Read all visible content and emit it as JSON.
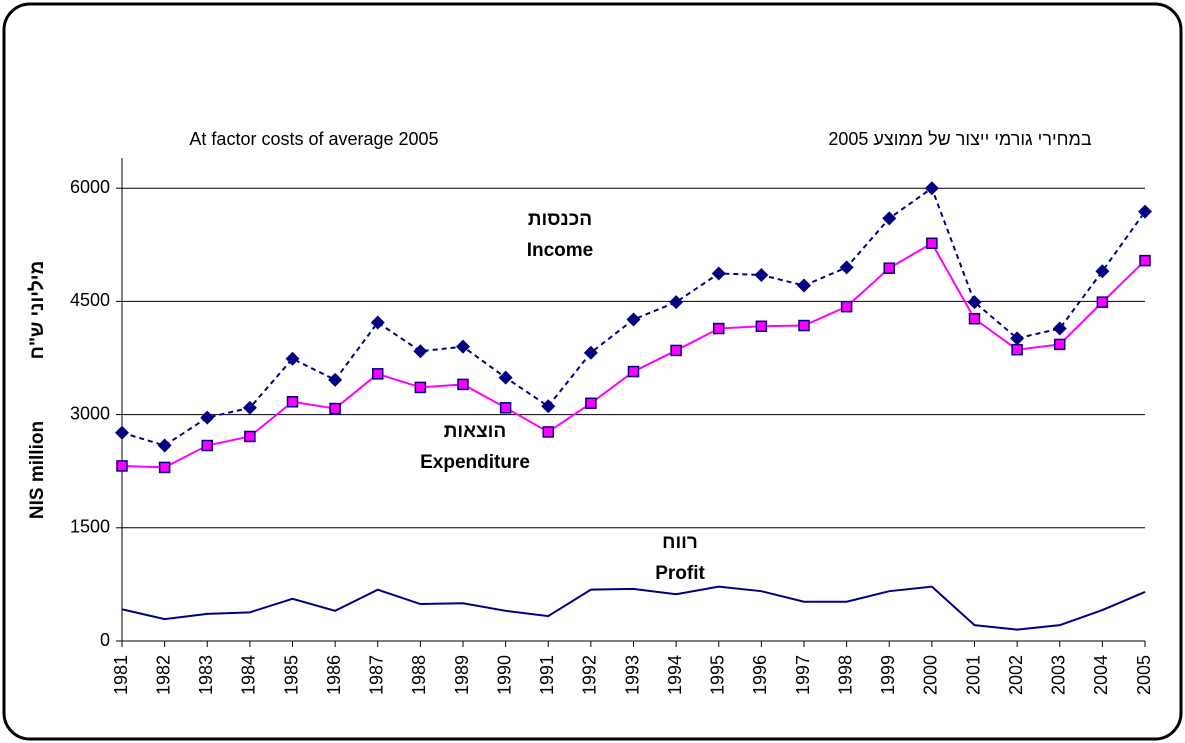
{
  "chart_data": {
    "type": "line",
    "subtitle_left": "At factor costs of average 2005",
    "subtitle_right": "במחירי גורמי ייצור של ממוצע 2005",
    "ylabel": "NIS million",
    "ylabel_he": "מיליוני ש\"ח",
    "categories": [
      "1981",
      "1982",
      "1983",
      "1984",
      "1985",
      "1986",
      "1987",
      "1988",
      "1989",
      "1990",
      "1991",
      "1992",
      "1993",
      "1994",
      "1995",
      "1996",
      "1997",
      "1998",
      "1999",
      "2000",
      "2001",
      "2002",
      "2003",
      "2004",
      "2005"
    ],
    "series": [
      {
        "name": "Income",
        "name_he": "הכנסות",
        "color": "#000080",
        "dashed": true,
        "marker": "diamond",
        "values": [
          2760,
          2590,
          2960,
          3090,
          3740,
          3460,
          4220,
          3840,
          3900,
          3490,
          3110,
          3820,
          4260,
          4490,
          4870,
          4850,
          4710,
          4950,
          5600,
          6000,
          4490,
          4010,
          4140,
          4900,
          5690
        ]
      },
      {
        "name": "Expenditure",
        "name_he": "הוצאות",
        "color": "#ff00ff",
        "dashed": false,
        "marker": "square",
        "values": [
          2320,
          2300,
          2590,
          2710,
          3170,
          3080,
          3540,
          3360,
          3400,
          3090,
          2770,
          3150,
          3570,
          3850,
          4140,
          4170,
          4180,
          4430,
          4940,
          5270,
          4270,
          3860,
          3930,
          4490,
          5040
        ]
      },
      {
        "name": "Profit",
        "name_he": "רווח",
        "color": "#000080",
        "dashed": false,
        "marker": "none",
        "values": [
          420,
          290,
          360,
          380,
          560,
          400,
          680,
          490,
          500,
          400,
          330,
          680,
          690,
          620,
          720,
          660,
          520,
          520,
          660,
          720,
          210,
          150,
          210,
          410,
          650
        ]
      }
    ],
    "ylim": [
      0,
      6400
    ],
    "yticks": [
      0,
      1500,
      3000,
      4500,
      6000
    ],
    "grid": true
  }
}
